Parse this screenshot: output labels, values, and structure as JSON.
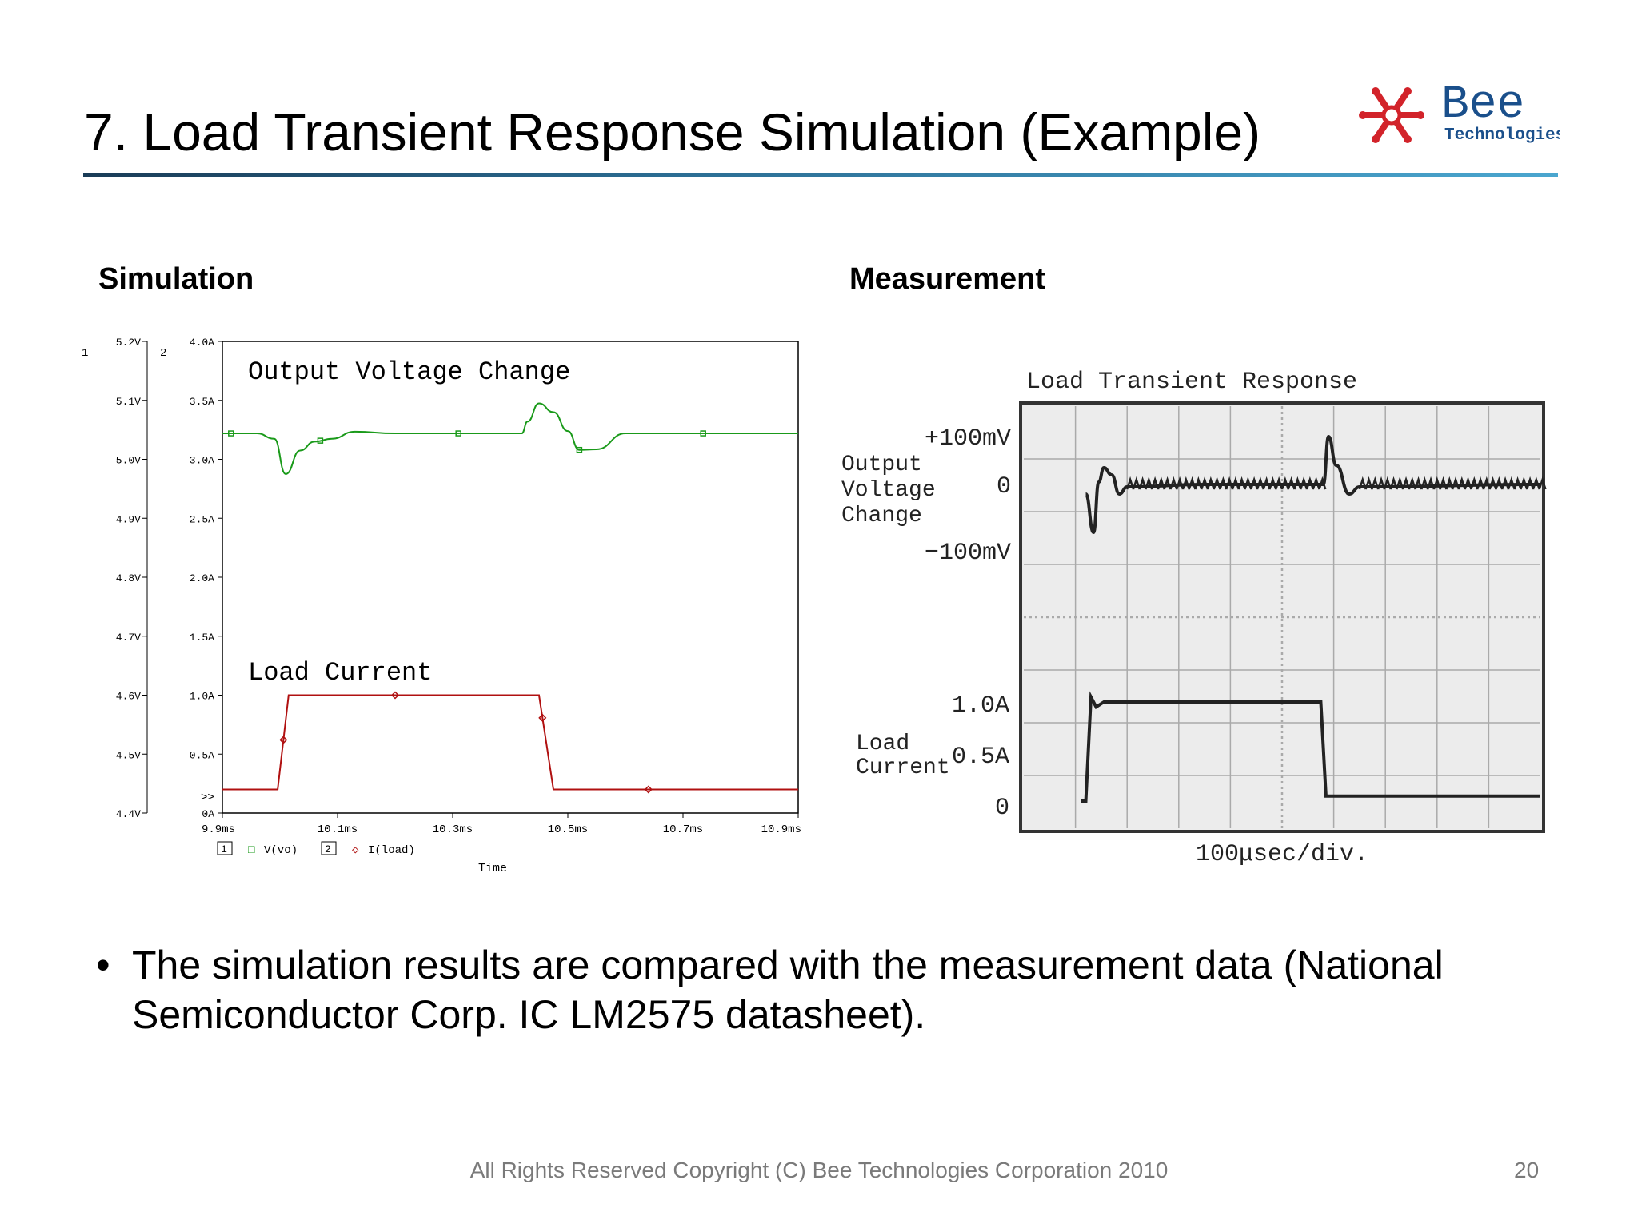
{
  "slide": {
    "title": "7. Load Transient Response Simulation (Example)",
    "logo_text": "Bee",
    "logo_subtext": "Technologies",
    "bullet": "The simulation results are compared with the measurement data (National Semiconductor Corp. IC LM2575 datasheet).",
    "footer": "All Rights Reserved Copyright (C) Bee Technologies Corporation 2010",
    "page_number": "20",
    "colors": {
      "accent_rule": "#2b6d93",
      "logo_red": "#d2232a",
      "logo_blue": "#1a4f8b"
    }
  },
  "chart_data": [
    {
      "type": "line",
      "section_label": "Simulation",
      "xlabel": "Time",
      "x_ticks": [
        "9.9ms",
        "10.1ms",
        "10.3ms",
        "10.5ms",
        "10.7ms",
        "10.9ms"
      ],
      "xlim": [
        9.9,
        10.9
      ],
      "y_axis_1": {
        "label_id": "1",
        "ticks": [
          "5.2V",
          "5.1V",
          "5.0V",
          "4.9V",
          "4.8V",
          "4.7V",
          "4.6V",
          "4.5V",
          "4.4V"
        ],
        "ylim": [
          4.4,
          5.2
        ],
        "unit": "V"
      },
      "y_axis_2": {
        "label_id": "2",
        "ticks": [
          "4.0A",
          "3.5A",
          "3.0A",
          "2.5A",
          "2.0A",
          "1.5A",
          "1.0A",
          "0.5A",
          "0A"
        ],
        "ylim": [
          0,
          4.0
        ],
        "unit": "A"
      },
      "axis_marker": ">>",
      "annotations": [
        "Output Voltage Change",
        "Load Current"
      ],
      "legend": [
        {
          "axis_box": "1",
          "marker": "□",
          "name": "V(vo)",
          "color": "#1a9a1a"
        },
        {
          "axis_box": "2",
          "marker": "◇",
          "name": "I(load)",
          "color": "#b01010"
        }
      ],
      "series": [
        {
          "name": "V(vo)",
          "axis": 1,
          "color": "#1a9a1a",
          "x": [
            9.9,
            9.96,
            9.99,
            10.01,
            10.035,
            10.06,
            10.09,
            10.13,
            10.2,
            10.3,
            10.35,
            10.42,
            10.43,
            10.45,
            10.475,
            10.5,
            10.52,
            10.55,
            10.6,
            10.7,
            10.9
          ],
          "y": [
            5.044,
            5.044,
            5.035,
            4.975,
            5.015,
            5.03,
            5.035,
            5.047,
            5.044,
            5.044,
            5.044,
            5.044,
            5.064,
            5.095,
            5.08,
            5.048,
            5.016,
            5.017,
            5.044,
            5.044,
            5.044
          ]
        },
        {
          "name": "I(load)",
          "axis": 2,
          "color": "#b01010",
          "x": [
            9.9,
            9.996,
            10.015,
            10.45,
            10.475,
            10.9
          ],
          "y": [
            0.2,
            0.2,
            1.0,
            1.0,
            0.2,
            0.2
          ]
        }
      ]
    },
    {
      "type": "line",
      "section_label": "Measurement",
      "title": "Load Transient Response",
      "xlabel": "100μsec/div.",
      "voltage_labels": [
        "+100mV",
        "0",
        "−100mV"
      ],
      "current_labels": [
        "1.0A",
        "0.5A",
        "0"
      ],
      "voltage_trace_label": [
        "Output",
        "Voltage",
        "Change"
      ],
      "current_trace_label": [
        "Load",
        "Current"
      ],
      "grid": true,
      "grid_divisions": {
        "x": 10,
        "y": 8
      },
      "series": [
        {
          "name": "Output Voltage Change",
          "unit": "mV",
          "x_div": [
            1.2,
            1.35,
            1.45,
            1.55,
            1.7,
            1.85,
            2.0,
            3.5,
            5.8,
            5.9,
            6.05,
            6.3,
            6.5,
            10.0
          ],
          "y": [
            -20,
            -100,
            5,
            35,
            20,
            -20,
            -5,
            0,
            0,
            100,
            40,
            -20,
            -5,
            0
          ]
        },
        {
          "name": "Load Current",
          "unit": "A",
          "x_div": [
            1.1,
            1.2,
            1.3,
            1.4,
            1.55,
            1.7,
            5.6,
            5.75,
            5.85,
            10.0
          ],
          "y": [
            0.0,
            0.0,
            1.05,
            0.95,
            1.0,
            1.0,
            1.0,
            1.0,
            0.05,
            0.05
          ]
        }
      ]
    }
  ]
}
